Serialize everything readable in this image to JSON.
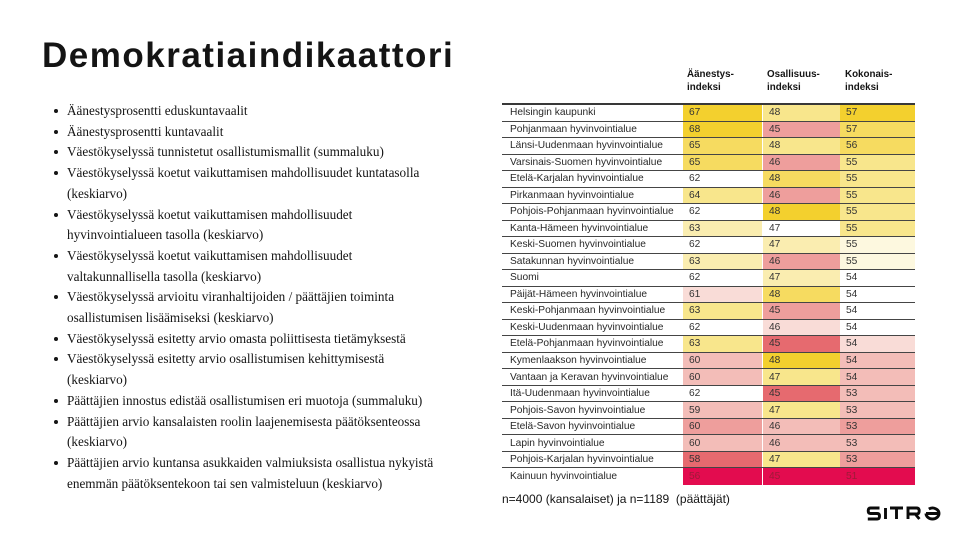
{
  "title": "Demokratiaindikaattori",
  "bullets": [
    "Äänestysprosentti eduskuntavaalit",
    "Äänestysprosentti kuntavaalit",
    "Väestökyselyssä tunnistetut osallistumismallit (summaluku)",
    "Väestökyselyssä koetut vaikuttamisen mahdollisuudet kuntatasolla\n(keskiarvo)",
    "Väestökyselyssä koetut vaikuttamisen mahdollisuudet\nhyvinvointialueen tasolla (keskiarvo)",
    "Väestökyselyssä koetut vaikuttamisen mahdollisuudet\nvaltakunnallisella tasolla (keskiarvo)",
    "Väestökyselyssä arvioitu viranhaltijoiden / päättäjien toiminta\nosallistumisen lisäämiseksi (keskiarvo)",
    "Väestökyselyssä esitetty arvio omasta poliittisesta tietämyksestä",
    "Väestökyselyssä esitetty arvio osallistumisen kehittymisestä\n(keskiarvo)",
    "Päättäjien innostus edistää osallistumisen eri muotoja (summaluku)",
    "Päättäjien arvio kansalaisten roolin laajenemisesta päätöksenteossa\n(keskiarvo)",
    "Päättäjien arvio kuntansa asukkaiden valmiuksista osallistua nykyistä\nenemmän päätöksentekoon tai sen valmisteluun (keskiarvo)"
  ],
  "chart_data": {
    "type": "table",
    "columns": [
      "Äänestys-indeksi",
      "Osallisuus-indeksi",
      "Kokonais-indeksi"
    ],
    "rows": [
      {
        "name": "Helsingin kaupunki",
        "values": [
          67,
          48,
          57
        ],
        "colors": [
          "y1",
          "y3",
          "y1"
        ]
      },
      {
        "name": "Pohjanmaan hyvinvointialue",
        "values": [
          68,
          45,
          57
        ],
        "colors": [
          "y1",
          "p3",
          "y2"
        ]
      },
      {
        "name": "Länsi-Uudenmaan hyvinvointialue",
        "values": [
          65,
          48,
          56
        ],
        "colors": [
          "y2",
          "y3",
          "y2"
        ]
      },
      {
        "name": "Varsinais-Suomen hyvinvointialue",
        "values": [
          65,
          46,
          55
        ],
        "colors": [
          "y2",
          "p3",
          "y3"
        ]
      },
      {
        "name": "Etelä-Karjalan hyvinvointialue",
        "values": [
          62,
          48,
          55
        ],
        "colors": [
          "w",
          "y2",
          "y3"
        ]
      },
      {
        "name": "Pirkanmaan hyvinvointialue",
        "values": [
          64,
          46,
          55
        ],
        "colors": [
          "y3",
          "p3",
          "y3"
        ]
      },
      {
        "name": "Pohjois-Pohjanmaan hyvinvointialue",
        "values": [
          62,
          48,
          55
        ],
        "colors": [
          "w",
          "y1",
          "y3"
        ]
      },
      {
        "name": "Kanta-Hämeen hyvinvointialue",
        "values": [
          63,
          47,
          55
        ],
        "colors": [
          "y4",
          "w",
          "y3"
        ]
      },
      {
        "name": "Keski-Suomen hyvinvointialue",
        "values": [
          62,
          47,
          55
        ],
        "colors": [
          "w",
          "y4",
          "y5"
        ]
      },
      {
        "name": "Satakunnan hyvinvointialue",
        "values": [
          63,
          46,
          55
        ],
        "colors": [
          "y4",
          "p3",
          "y5"
        ]
      },
      {
        "name": "Suomi",
        "values": [
          62,
          47,
          54
        ],
        "colors": [
          "w",
          "y4",
          "w"
        ]
      },
      {
        "name": "Päijät-Hämeen hyvinvointialue",
        "values": [
          61,
          48,
          54
        ],
        "colors": [
          "p1",
          "y2",
          "w"
        ]
      },
      {
        "name": "Keski-Pohjanmaan hyvinvointialue",
        "values": [
          63,
          45,
          54
        ],
        "colors": [
          "y3",
          "p3",
          "w"
        ]
      },
      {
        "name": "Keski-Uudenmaan hyvinvointialue",
        "values": [
          62,
          46,
          54
        ],
        "colors": [
          "w",
          "p1",
          "w"
        ]
      },
      {
        "name": "Etelä-Pohjanmaan hyvinvointialue",
        "values": [
          63,
          45,
          54
        ],
        "colors": [
          "y3",
          "p4",
          "p1"
        ]
      },
      {
        "name": "Kymenlaakson hyvinvointialue",
        "values": [
          60,
          48,
          54
        ],
        "colors": [
          "p2",
          "y1",
          "p2"
        ]
      },
      {
        "name": "Vantaan ja Keravan hyvinvointialue",
        "values": [
          60,
          47,
          54
        ],
        "colors": [
          "p2",
          "y3",
          "p2"
        ]
      },
      {
        "name": "Itä-Uudenmaan hyvinvointialue",
        "values": [
          62,
          45,
          53
        ],
        "colors": [
          "w",
          "p4",
          "p2"
        ]
      },
      {
        "name": "Pohjois-Savon hyvinvointialue",
        "values": [
          59,
          47,
          53
        ],
        "colors": [
          "p2",
          "y3",
          "p2"
        ]
      },
      {
        "name": "Etelä-Savon hyvinvointialue",
        "values": [
          60,
          46,
          53
        ],
        "colors": [
          "p3",
          "p2",
          "p3"
        ]
      },
      {
        "name": "Lapin hyvinvointialue",
        "values": [
          60,
          46,
          53
        ],
        "colors": [
          "p2",
          "p2",
          "p2"
        ]
      },
      {
        "name": "Pohjois-Karjalan hyvinvointialue",
        "values": [
          58,
          47,
          53
        ],
        "colors": [
          "p4",
          "y3",
          "p3"
        ]
      },
      {
        "name": "Kainuun hyvinvointialue",
        "values": [
          56,
          45,
          51
        ],
        "colors": [
          "r",
          "r",
          "r"
        ]
      }
    ]
  },
  "table": {
    "headers": [
      "Äänestys-\nindeksi",
      "Osallisuus-\nindeksi",
      "Kokonais-\nindeksi"
    ]
  },
  "palette": {
    "y1": "#F3D02E",
    "y2": "#F6DB60",
    "y3": "#F8E68C",
    "y4": "#FAEDB0",
    "y5": "#FDF8DF",
    "w": "#FFFFFF",
    "p1": "#F9DCD7",
    "p2": "#F3BDB8",
    "p3": "#EE9E9C",
    "p4": "#E66A6F",
    "r": "#E30C4F",
    "r_text": "#9D1B38"
  },
  "caption": "n=4000 (kansalaiset) ja n=1189  (päättäjät)",
  "logo": "SITRA"
}
